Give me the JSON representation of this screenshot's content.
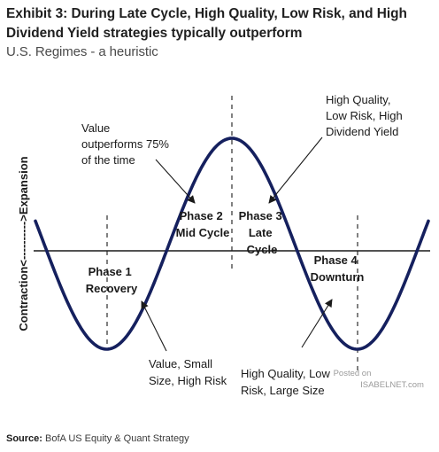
{
  "header": {
    "title": "Exhibit 3: During Late Cycle, High Quality, Low Risk, and High Dividend Yield strategies typically outperform",
    "subtitle": "U.S. Regimes - a heuristic"
  },
  "diagram": {
    "y_axis_label": "Contraction<---------->Expansion",
    "phases": [
      {
        "line1": "Phase 1",
        "line2": "Recovery"
      },
      {
        "line1": "Phase 2",
        "line2": "Mid Cycle"
      },
      {
        "line1": "Phase 3",
        "line2": "Late",
        "line3": "Cycle"
      },
      {
        "line1": "Phase 4",
        "line2": "Downturn"
      }
    ],
    "callouts": {
      "value": [
        "Value",
        "outperforms 75%",
        "of the time"
      ],
      "quality_dividend": [
        "High Quality,",
        "Low Risk, High",
        "Dividend Yield"
      ],
      "value_small": [
        "Value, Small",
        "Size, High Risk"
      ],
      "quality_large": [
        "High Quality, Low",
        "Risk, Large Size"
      ]
    },
    "colors": {
      "curve": "#15205e",
      "axis": "#1a1a1a",
      "text": "#1a1a1a"
    }
  },
  "watermark": {
    "line1": "Posted on",
    "line2": "ISABELNET.com"
  },
  "footer": {
    "source_label": "Source:",
    "source_text": "BofA US Equity & Quant Strategy"
  }
}
